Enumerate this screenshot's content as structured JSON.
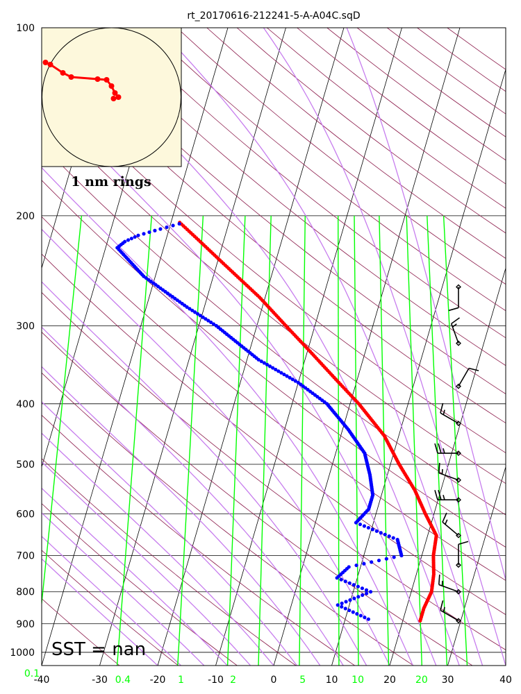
{
  "title": "rt_20170616-212241-5-A-A04C.sqD",
  "sst_label": "SST =  nan",
  "hodograph_label": "1 nm rings",
  "colors": {
    "temperature": "#ff0000",
    "dewpoint": "#0000ff",
    "dry_adiabat": "#8b1a4a",
    "moist_adiabat": "#c77dee",
    "mixing_ratio": "#00ff00",
    "isotherm": "#000000",
    "hodo_bg": "#fdf8dc"
  },
  "chart_data": {
    "type": "scatter",
    "title": "rt_20170616-212241-5-A-A04C.sqD",
    "xlim": [
      -40,
      40
    ],
    "ylim": [
      1050,
      100
    ],
    "pressure_ticks": [
      100,
      200,
      300,
      400,
      500,
      600,
      700,
      800,
      900,
      1000
    ],
    "temperature_ticks": [
      -40,
      -30,
      -20,
      -10,
      0,
      10,
      20,
      30,
      40
    ],
    "mixing_ratio_labels": [
      {
        "value": "0.1",
        "x": -40.0
      },
      {
        "value": "0.4",
        "x": -26.0
      },
      {
        "value": "1",
        "x": -16.0
      },
      {
        "value": "2",
        "x": -7.0
      },
      {
        "value": "5",
        "x": 5.0
      },
      {
        "value": "10",
        "x": 14.5
      },
      {
        "value": "20",
        "x": 25.5
      }
    ],
    "temperature_profile": [
      {
        "p": 890,
        "t": 23.0
      },
      {
        "p": 850,
        "t": 23.0
      },
      {
        "p": 800,
        "t": 23.5
      },
      {
        "p": 750,
        "t": 23.0
      },
      {
        "p": 700,
        "t": 22.0
      },
      {
        "p": 650,
        "t": 21.5
      },
      {
        "p": 600,
        "t": 18.5
      },
      {
        "p": 550,
        "t": 15.5
      },
      {
        "p": 500,
        "t": 11.5
      },
      {
        "p": 450,
        "t": 7.5
      },
      {
        "p": 400,
        "t": 1.5
      },
      {
        "p": 370,
        "t": -3.0
      },
      {
        "p": 330,
        "t": -9.5
      },
      {
        "p": 300,
        "t": -15.0
      },
      {
        "p": 270,
        "t": -21.0
      },
      {
        "p": 240,
        "t": -28.5
      },
      {
        "p": 220,
        "t": -34.0
      },
      {
        "p": 205,
        "t": -38.5
      }
    ],
    "dewpoint_profile": [
      {
        "p": 885,
        "t": 14.0
      },
      {
        "p": 840,
        "t": 8.0
      },
      {
        "p": 800,
        "t": 13.0
      },
      {
        "p": 760,
        "t": 6.5
      },
      {
        "p": 730,
        "t": 8.0
      },
      {
        "p": 700,
        "t": 16.5
      },
      {
        "p": 660,
        "t": 15.0
      },
      {
        "p": 620,
        "t": 7.0
      },
      {
        "p": 590,
        "t": 8.5
      },
      {
        "p": 560,
        "t": 8.5
      },
      {
        "p": 520,
        "t": 7.0
      },
      {
        "p": 480,
        "t": 5.0
      },
      {
        "p": 440,
        "t": 1.0
      },
      {
        "p": 400,
        "t": -4.0
      },
      {
        "p": 370,
        "t": -10.0
      },
      {
        "p": 340,
        "t": -18.0
      },
      {
        "p": 300,
        "t": -27.0
      },
      {
        "p": 280,
        "t": -33.0
      },
      {
        "p": 250,
        "t": -42.0
      },
      {
        "p": 225,
        "t": -48.0
      },
      {
        "p": 220,
        "t": -47.0
      },
      {
        "p": 215,
        "t": -45.0
      },
      {
        "p": 210,
        "t": -41.5
      },
      {
        "p": 206,
        "t": -38.5
      }
    ],
    "wind_barbs": [
      {
        "p": 890,
        "dir": 300,
        "speed": 15
      },
      {
        "p": 800,
        "dir": 290,
        "speed": 15
      },
      {
        "p": 725,
        "dir": 0,
        "speed": 10
      },
      {
        "p": 650,
        "dir": 310,
        "speed": 15
      },
      {
        "p": 570,
        "dir": 270,
        "speed": 25
      },
      {
        "p": 530,
        "dir": 290,
        "speed": 15
      },
      {
        "p": 480,
        "dir": 270,
        "speed": 25
      },
      {
        "p": 430,
        "dir": 300,
        "speed": 15
      },
      {
        "p": 375,
        "dir": 30,
        "speed": 10
      },
      {
        "p": 320,
        "dir": 340,
        "speed": 15
      },
      {
        "p": 260,
        "dir": 180,
        "speed": 10
      }
    ],
    "hodograph": [
      {
        "u": -0.95,
        "v": 0.5
      },
      {
        "u": -0.88,
        "v": 0.47
      },
      {
        "u": -0.7,
        "v": 0.35
      },
      {
        "u": -0.58,
        "v": 0.29
      },
      {
        "u": -0.2,
        "v": 0.26
      },
      {
        "u": -0.07,
        "v": 0.25
      },
      {
        "u": 0.0,
        "v": 0.16
      },
      {
        "u": 0.05,
        "v": 0.06
      },
      {
        "u": 0.1,
        "v": 0.0
      },
      {
        "u": 0.03,
        "v": -0.02
      }
    ]
  }
}
